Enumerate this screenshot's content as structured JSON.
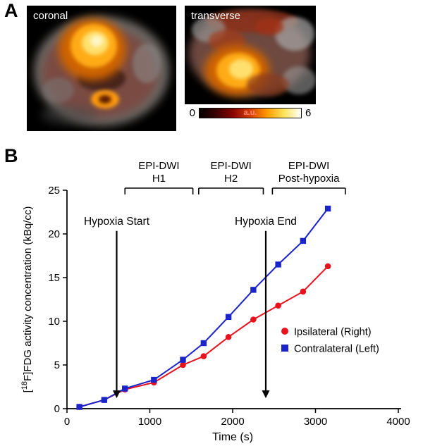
{
  "panel_a": {
    "label": "A",
    "coronal_label": "coronal",
    "transverse_label": "transverse",
    "colorbar": {
      "min_label": "0",
      "max_label": "6",
      "units_label": "a.u.",
      "colors": [
        "#000000",
        "#3c0000",
        "#8a0500",
        "#d43d00",
        "#ff9a00",
        "#ffe45a",
        "#ffffff"
      ]
    }
  },
  "panel_b": {
    "label": "B"
  },
  "chart_data": {
    "type": "line",
    "title": "",
    "xlabel": "Time (s)",
    "ylabel": {
      "bracket": "[",
      "sup": "18",
      "rest": "F]FDG activity concentration (kBq/cc)"
    },
    "xlim": [
      0,
      4000
    ],
    "ylim": [
      0,
      25
    ],
    "xticks": [
      0,
      1000,
      2000,
      3000,
      4000
    ],
    "yticks": [
      0,
      5,
      10,
      15,
      20,
      25
    ],
    "grid": false,
    "x": [
      150,
      450,
      700,
      1050,
      1400,
      1650,
      1950,
      2250,
      2550,
      2850,
      3150
    ],
    "series": [
      {
        "name": "Ipsilateral (Right)",
        "color": "#e8121c",
        "marker": "circle",
        "values": [
          0.2,
          1.0,
          2.2,
          3.0,
          5.0,
          6.0,
          8.2,
          10.2,
          11.8,
          13.4,
          16.3
        ]
      },
      {
        "name": "Contralateral (Left)",
        "color": "#1b24c8",
        "marker": "square",
        "values": [
          0.2,
          1.0,
          2.3,
          3.3,
          5.6,
          7.5,
          10.5,
          13.6,
          16.5,
          19.2,
          22.9
        ]
      }
    ],
    "annotations": [
      {
        "label": "Hypoxia Start",
        "x": 600,
        "y_top": 20.5,
        "y_tip": 1.2
      },
      {
        "label": "Hypoxia End",
        "x": 2400,
        "y_top": 20.5,
        "y_tip": 1.2
      }
    ],
    "brackets": [
      {
        "line1": "EPI-DWI",
        "line2": "H1",
        "x_start": 700,
        "x_end": 1520
      },
      {
        "line1": "EPI-DWI",
        "line2": "H2",
        "x_start": 1590,
        "x_end": 2370
      },
      {
        "line1": "EPI-DWI",
        "line2": "Post-hypoxia",
        "x_start": 2480,
        "x_end": 3360
      }
    ],
    "legend_position": "right-middle"
  }
}
